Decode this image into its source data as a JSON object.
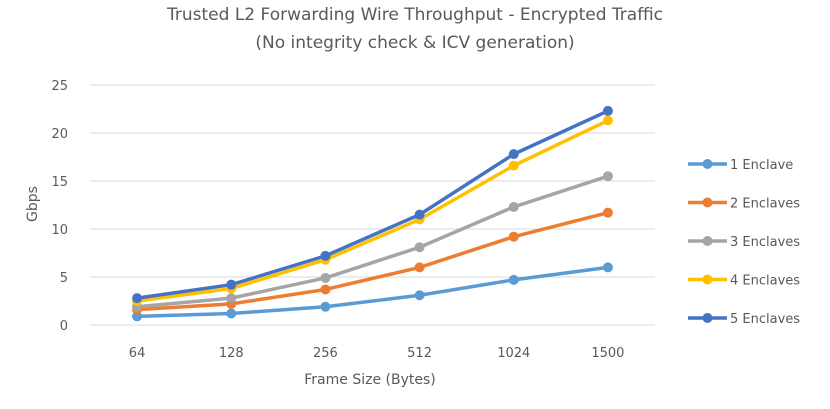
{
  "chart_data": {
    "type": "line",
    "title": "Trusted L2 Forwarding Wire Throughput - Encrypted Traffic",
    "subtitle": "(No integrity check & ICV generation)",
    "xlabel": "Frame Size (Bytes)",
    "ylabel": "Gbps",
    "categories": [
      "64",
      "128",
      "256",
      "512",
      "1024",
      "1500"
    ],
    "ylim": [
      0,
      25
    ],
    "yticks": [
      0,
      5,
      10,
      15,
      20,
      25
    ],
    "grid": true,
    "legend_position": "right",
    "series": [
      {
        "name": "1 Enclave",
        "color": "#5B9BD5",
        "values": [
          0.9,
          1.2,
          1.9,
          3.1,
          4.7,
          6.0
        ]
      },
      {
        "name": "2 Enclaves",
        "color": "#ED7D31",
        "values": [
          1.6,
          2.2,
          3.7,
          6.0,
          9.2,
          11.7
        ]
      },
      {
        "name": "3 Enclaves",
        "color": "#A5A5A5",
        "values": [
          1.9,
          2.8,
          4.9,
          8.1,
          12.3,
          15.5
        ]
      },
      {
        "name": "4 Enclaves",
        "color": "#FFC000",
        "values": [
          2.5,
          3.8,
          6.8,
          11.0,
          16.6,
          21.3
        ]
      },
      {
        "name": "5 Enclaves",
        "color": "#4472C4",
        "values": [
          2.8,
          4.2,
          7.2,
          11.5,
          17.8,
          22.3
        ]
      }
    ]
  }
}
